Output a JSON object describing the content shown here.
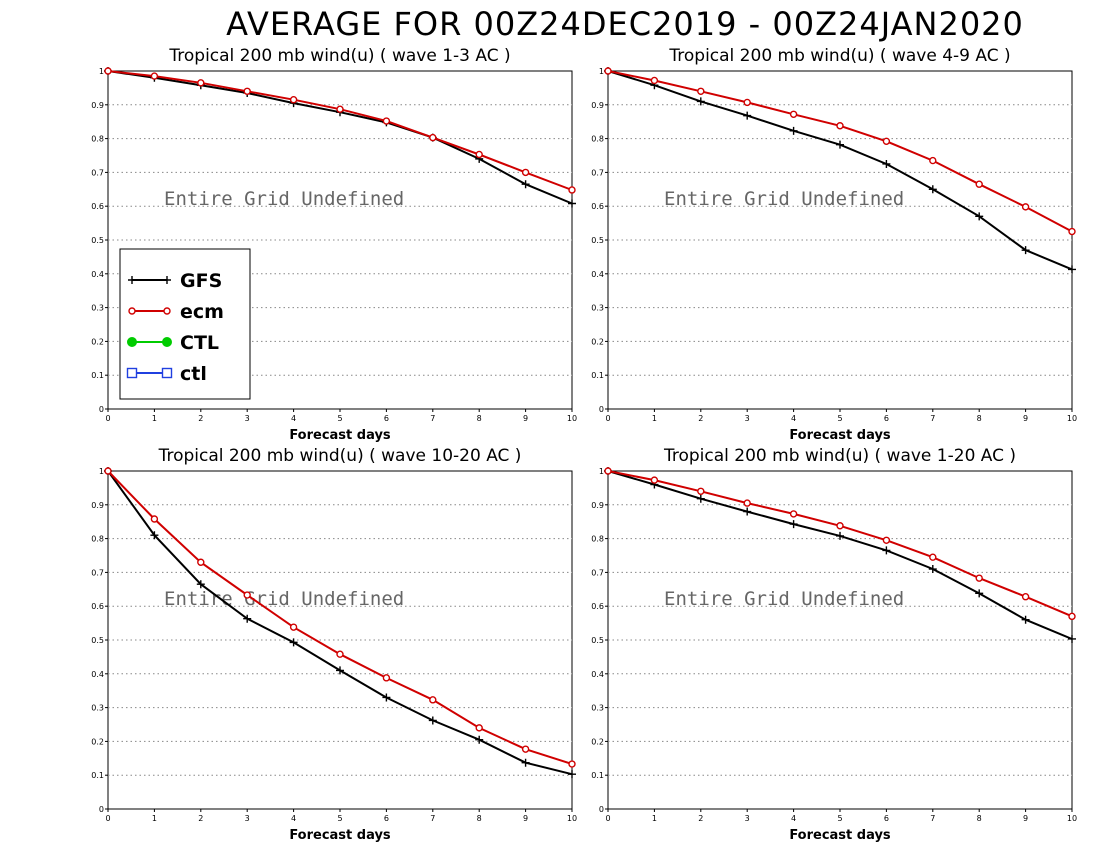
{
  "title": "AVERAGE FOR 00Z24DEC2019 - 00Z24JAN2020",
  "legend": {
    "entries": [
      {
        "label": "GFS",
        "color": "#000000",
        "marker": "plus"
      },
      {
        "label": "ecm",
        "color": "#d00000",
        "marker": "open-circle"
      },
      {
        "label": "CTL",
        "color": "#00cc00",
        "marker": "filled-circle"
      },
      {
        "label": "ctl",
        "color": "#2040e0",
        "marker": "open-square"
      }
    ]
  },
  "chart_data": [
    {
      "type": "line",
      "title": "Tropical 200 mb wind(u) ( wave 1-3 AC )",
      "xlabel": "Forecast days",
      "ylabel": "",
      "annotation": "Entire Grid Undefined",
      "x": [
        0,
        1,
        2,
        3,
        4,
        5,
        6,
        7,
        8,
        9,
        10
      ],
      "xticks": [
        "0",
        "1",
        "2",
        "3",
        "4",
        "5",
        "6",
        "7",
        "8",
        "9",
        "10"
      ],
      "yticks": [
        "0",
        "0.1",
        "0.2",
        "0.3",
        "0.4",
        "0.5",
        "0.6",
        "0.7",
        "0.8",
        "0.9",
        "1"
      ],
      "xlim": [
        0,
        10
      ],
      "ylim": [
        0,
        1
      ],
      "grid": "horizontal dotted",
      "legend_position": "lower-left",
      "series": [
        {
          "name": "GFS",
          "values": [
            1.0,
            0.98,
            0.958,
            0.935,
            0.905,
            0.878,
            0.848,
            0.803,
            0.74,
            0.665,
            0.608
          ]
        },
        {
          "name": "ecm",
          "values": [
            1.0,
            0.985,
            0.965,
            0.94,
            0.915,
            0.887,
            0.852,
            0.803,
            0.753,
            0.7,
            0.648
          ]
        }
      ]
    },
    {
      "type": "line",
      "title": "Tropical 200 mb wind(u) ( wave 4-9 AC )",
      "xlabel": "Forecast days",
      "ylabel": "",
      "annotation": "Entire Grid Undefined",
      "x": [
        0,
        1,
        2,
        3,
        4,
        5,
        6,
        7,
        8,
        9,
        10
      ],
      "xticks": [
        "0",
        "1",
        "2",
        "3",
        "4",
        "5",
        "6",
        "7",
        "8",
        "9",
        "10"
      ],
      "yticks": [
        "0",
        "0.1",
        "0.2",
        "0.3",
        "0.4",
        "0.5",
        "0.6",
        "0.7",
        "0.8",
        "0.9",
        "1"
      ],
      "xlim": [
        0,
        10
      ],
      "ylim": [
        0,
        1
      ],
      "grid": "horizontal dotted",
      "series": [
        {
          "name": "GFS",
          "values": [
            1.0,
            0.958,
            0.91,
            0.868,
            0.823,
            0.782,
            0.725,
            0.65,
            0.57,
            0.47,
            0.413
          ]
        },
        {
          "name": "ecm",
          "values": [
            1.0,
            0.972,
            0.94,
            0.907,
            0.872,
            0.838,
            0.792,
            0.735,
            0.665,
            0.598,
            0.525
          ]
        }
      ]
    },
    {
      "type": "line",
      "title": "Tropical 200 mb wind(u) ( wave 10-20 AC )",
      "xlabel": "Forecast days",
      "ylabel": "",
      "annotation": "Entire Grid Undefined",
      "x": [
        0,
        1,
        2,
        3,
        4,
        5,
        6,
        7,
        8,
        9,
        10
      ],
      "xticks": [
        "0",
        "1",
        "2",
        "3",
        "4",
        "5",
        "6",
        "7",
        "8",
        "9",
        "10"
      ],
      "yticks": [
        "0",
        "0.1",
        "0.2",
        "0.3",
        "0.4",
        "0.5",
        "0.6",
        "0.7",
        "0.8",
        "0.9",
        "1"
      ],
      "xlim": [
        0,
        10
      ],
      "ylim": [
        0,
        1
      ],
      "grid": "horizontal dotted",
      "series": [
        {
          "name": "GFS",
          "values": [
            1.0,
            0.81,
            0.665,
            0.563,
            0.493,
            0.41,
            0.33,
            0.262,
            0.205,
            0.137,
            0.103
          ]
        },
        {
          "name": "ecm",
          "values": [
            1.0,
            0.858,
            0.73,
            0.633,
            0.538,
            0.458,
            0.388,
            0.323,
            0.24,
            0.177,
            0.133
          ]
        }
      ]
    },
    {
      "type": "line",
      "title": "Tropical 200 mb wind(u) ( wave 1-20 AC )",
      "xlabel": "Forecast days",
      "ylabel": "",
      "annotation": "Entire Grid Undefined",
      "x": [
        0,
        1,
        2,
        3,
        4,
        5,
        6,
        7,
        8,
        9,
        10
      ],
      "xticks": [
        "0",
        "1",
        "2",
        "3",
        "4",
        "5",
        "6",
        "7",
        "8",
        "9",
        "10"
      ],
      "yticks": [
        "0",
        "0.1",
        "0.2",
        "0.3",
        "0.4",
        "0.5",
        "0.6",
        "0.7",
        "0.8",
        "0.9",
        "1"
      ],
      "xlim": [
        0,
        10
      ],
      "ylim": [
        0,
        1
      ],
      "grid": "horizontal dotted",
      "series": [
        {
          "name": "GFS",
          "values": [
            1.0,
            0.96,
            0.918,
            0.88,
            0.843,
            0.808,
            0.765,
            0.71,
            0.638,
            0.56,
            0.503
          ]
        },
        {
          "name": "ecm",
          "values": [
            1.0,
            0.973,
            0.94,
            0.905,
            0.873,
            0.838,
            0.795,
            0.745,
            0.683,
            0.628,
            0.57
          ]
        }
      ]
    }
  ]
}
